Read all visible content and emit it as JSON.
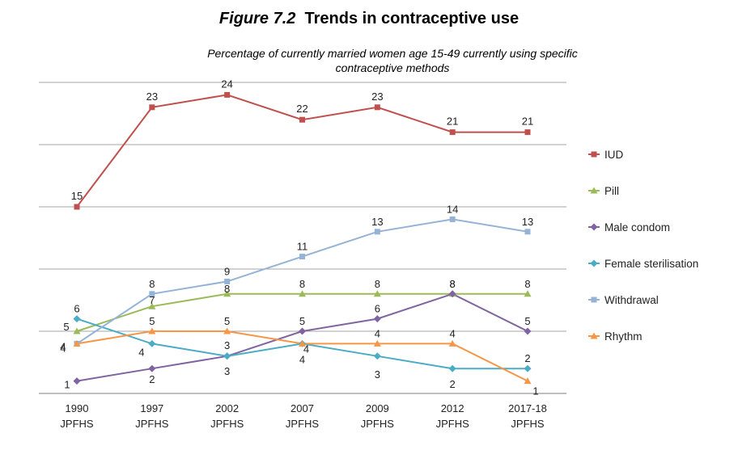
{
  "header": {
    "figure_label": "Figure 7.2",
    "title_text": "Trends in contraceptive use",
    "subtitle_line1": "Percentage of currently married women age 15-49 currently using specific",
    "subtitle_line2": "contraceptive methods"
  },
  "chart_data": {
    "type": "line",
    "title": "Figure 7.2 Trends in contraceptive use",
    "subtitle": "Percentage of currently married women age 15-49 currently using specific contraceptive methods",
    "categories": [
      [
        "1990",
        "JPFHS"
      ],
      [
        "1997",
        "JPFHS"
      ],
      [
        "2002",
        "JPFHS"
      ],
      [
        "2007",
        "JPFHS"
      ],
      [
        "2009",
        "JPFHS"
      ],
      [
        "2012",
        "JPFHS"
      ],
      [
        "2017-18",
        "JPFHS"
      ]
    ],
    "ylim": [
      0,
      25
    ],
    "grid": true,
    "legend_position": "right",
    "series": [
      {
        "name": "IUD",
        "color": "#c0504d",
        "marker": "square",
        "values": [
          15,
          23,
          24,
          22,
          23,
          21,
          21
        ]
      },
      {
        "name": "Pill",
        "color": "#9bbb59",
        "marker": "triangle",
        "values": [
          5,
          7,
          8,
          8,
          8,
          8,
          8
        ]
      },
      {
        "name": "Male condom",
        "color": "#8064a2",
        "marker": "diamond",
        "values": [
          1,
          2,
          3,
          5,
          6,
          8,
          5
        ]
      },
      {
        "name": "Female sterilisation",
        "color": "#4bacc6",
        "marker": "diamond",
        "values": [
          6,
          4,
          3,
          4,
          3,
          2,
          2
        ]
      },
      {
        "name": "Withdrawal",
        "color": "#95b3d7",
        "marker": "square",
        "values": [
          4,
          8,
          9,
          11,
          13,
          14,
          13
        ]
      },
      {
        "name": "Rhythm",
        "color": "#f79646",
        "marker": "triangle",
        "values": [
          4,
          5,
          5,
          4,
          4,
          4,
          1
        ]
      }
    ]
  }
}
